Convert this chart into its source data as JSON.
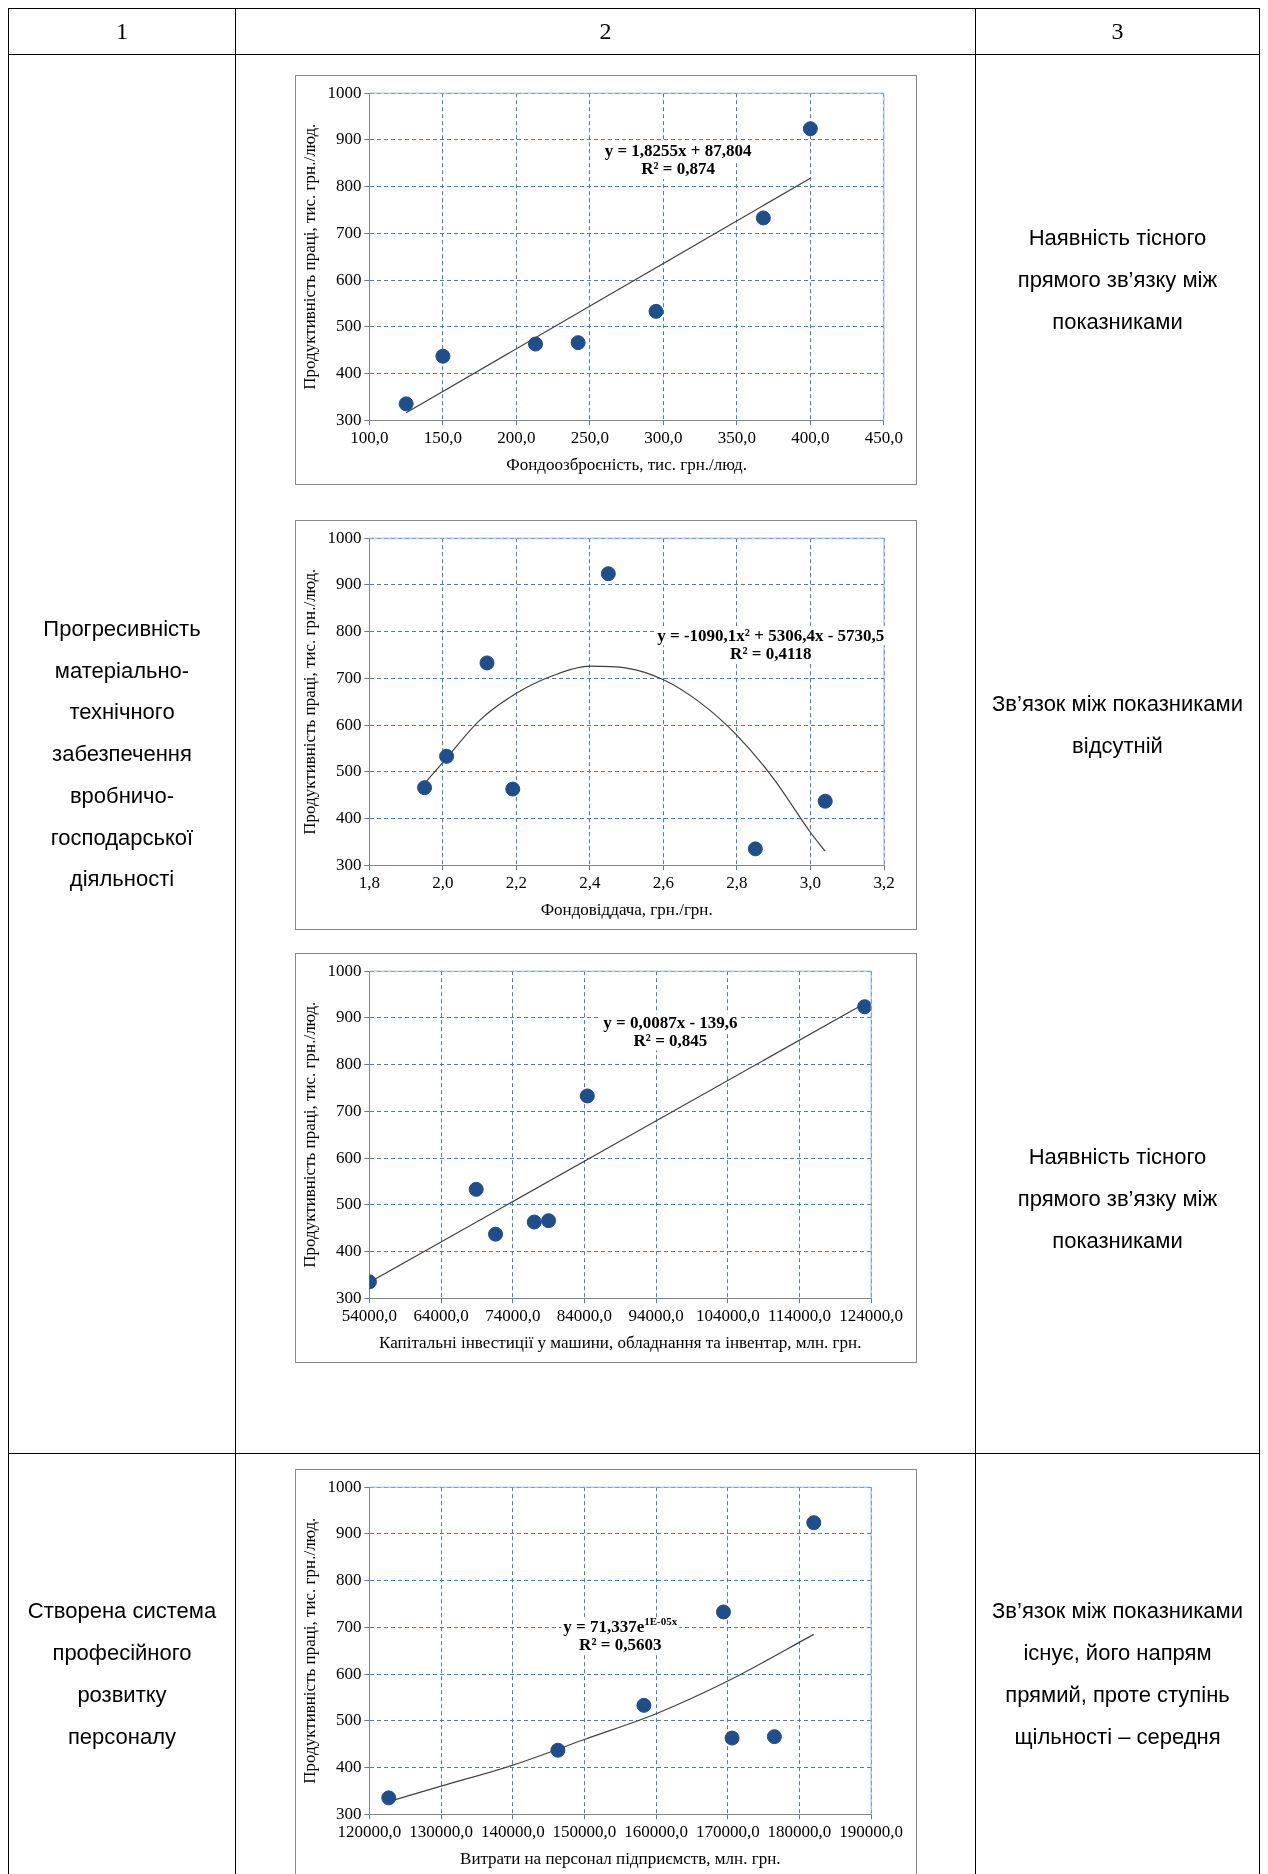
{
  "chart_data": [
    {
      "type": "other",
      "annotations": [
        "1",
        "2",
        "3"
      ]
    },
    {
      "type": "other",
      "annotations": [
        "Прогресивність матеріально-технічного забезпечення вробничо-господарської діяльності"
      ]
    },
    {
      "type": "scatter",
      "xlabel": "Фондоозброєність, тис. грн./люд.",
      "ylabel": "Продуктивність праці, тис. грн./люд.",
      "xlim": [
        100,
        450
      ],
      "ylim": [
        300,
        1000
      ],
      "xticks": [
        {
          "value": 100,
          "label": "100,0"
        },
        {
          "value": 150,
          "label": "150,0"
        },
        {
          "value": 200,
          "label": "200,0"
        },
        {
          "value": 250,
          "label": "250,0"
        },
        {
          "value": 300,
          "label": "300,0"
        },
        {
          "value": 350,
          "label": "350,0"
        },
        {
          "value": 400,
          "label": "400,0"
        },
        {
          "value": 450,
          "label": "450,0"
        }
      ],
      "yticks": [
        300,
        400,
        500,
        600,
        700,
        800,
        900,
        1000
      ],
      "grid": true,
      "series": [
        {
          "type": "scatter",
          "marker": "circle",
          "color": "#1f4e8c",
          "x": [
            125,
            150,
            213,
            242,
            295,
            368,
            400
          ],
          "values": [
            335,
            437,
            463,
            466,
            533,
            733,
            924
          ]
        },
        {
          "type": "line",
          "marker": "none",
          "color": "#404040",
          "x": [
            125,
            400
          ],
          "values": [
            316,
            818
          ]
        }
      ],
      "annotations": [
        "y = 1,8255x + 87,804",
        "R² = 0,874"
      ]
    },
    {
      "type": "other",
      "annotations": [
        "Наявність тісного прямого зв’язку між показниками"
      ]
    },
    {
      "type": "scatter",
      "xlabel": "Фондовіддача, грн./грн.",
      "ylabel": "Продуктивність праці, тис. грн./люд.",
      "xlim": [
        1.8,
        3.2
      ],
      "ylim": [
        300,
        1000
      ],
      "xticks": [
        {
          "value": 1.8,
          "label": "1,8"
        },
        {
          "value": 2,
          "label": "2,0"
        },
        {
          "value": 2.2,
          "label": "2,2"
        },
        {
          "value": 2.4,
          "label": "2,4"
        },
        {
          "value": 2.6,
          "label": "2,6"
        },
        {
          "value": 2.8,
          "label": "2,8"
        },
        {
          "value": 3,
          "label": "3,0"
        },
        {
          "value": 3.2,
          "label": "3,2"
        }
      ],
      "yticks": [
        300,
        400,
        500,
        600,
        700,
        800,
        900,
        1000
      ],
      "grid": true,
      "series": [
        {
          "type": "scatter",
          "marker": "circle",
          "color": "#1f4e8c",
          "x": [
            1.95,
            2.01,
            2.12,
            2.19,
            2.45,
            2.85,
            3.04
          ],
          "values": [
            466,
            533,
            733,
            463,
            924,
            335,
            437
          ]
        },
        {
          "type": "line",
          "marker": "none",
          "color": "#404040",
          "x": [
            1.95,
            2,
            2.1,
            2.2,
            2.3,
            2.4,
            2.5,
            2.6,
            2.7,
            2.8,
            2.9,
            3,
            3.04
          ],
          "values": [
            475,
            520,
            610,
            668,
            706,
            726,
            722,
            697,
            648,
            578,
            485,
            370,
            330
          ]
        }
      ],
      "annotations": [
        "y = -1090,1x² + 5306,4x - 5730,5",
        "R² = 0,4118"
      ]
    },
    {
      "type": "other",
      "annotations": [
        "Зв’язок між показниками відсутній"
      ]
    },
    {
      "type": "scatter",
      "xlabel": "Капітальні інвестиції у машини, обладнання та інвентар, млн. грн.",
      "ylabel": "Продуктивність праці, тис. грн./люд.",
      "xlim": [
        54000,
        124000
      ],
      "ylim": [
        300,
        1000
      ],
      "xticks": [
        {
          "value": 54000,
          "label": "54000,0"
        },
        {
          "value": 64000,
          "label": "64000,0"
        },
        {
          "value": 74000,
          "label": "74000,0"
        },
        {
          "value": 84000,
          "label": "84000,0"
        },
        {
          "value": 94000,
          "label": "94000,0"
        },
        {
          "value": 104000,
          "label": "104000,0"
        },
        {
          "value": 114000,
          "label": "114000,0"
        },
        {
          "value": 124000,
          "label": "124000,0"
        }
      ],
      "yticks": [
        300,
        400,
        500,
        600,
        700,
        800,
        900,
        1000
      ],
      "grid": true,
      "series": [
        {
          "type": "scatter",
          "marker": "circle",
          "color": "#1f4e8c",
          "x": [
            54000,
            68900,
            71600,
            77000,
            79000,
            84400,
            123100
          ],
          "values": [
            335,
            533,
            437,
            463,
            466,
            733,
            924
          ]
        },
        {
          "type": "line",
          "marker": "none",
          "color": "#404040",
          "x": [
            54000,
            123100
          ],
          "values": [
            334,
            931
          ]
        }
      ],
      "annotations": [
        "y = 0,0087x - 139,6",
        "R² = 0,845"
      ]
    },
    {
      "type": "other",
      "annotations": [
        "Наявність тісного прямого зв’язку між показниками"
      ]
    },
    {
      "type": "other",
      "annotations": [
        "Створена система професійного розвитку персоналу"
      ]
    },
    {
      "type": "scatter",
      "xlabel": "Витрати на персонал підприємств, млн. грн.",
      "ylabel": "Продуктивність праці, тис. грн./люд.",
      "xlim": [
        120000,
        190000
      ],
      "ylim": [
        300,
        1000
      ],
      "xticks": [
        {
          "value": 120000,
          "label": "120000,0"
        },
        {
          "value": 130000,
          "label": "130000,0"
        },
        {
          "value": 140000,
          "label": "140000,0"
        },
        {
          "value": 150000,
          "label": "150000,0"
        },
        {
          "value": 160000,
          "label": "160000,0"
        },
        {
          "value": 170000,
          "label": "170000,0"
        },
        {
          "value": 180000,
          "label": "180000,0"
        },
        {
          "value": 190000,
          "label": "190000,0"
        }
      ],
      "yticks": [
        300,
        400,
        500,
        600,
        700,
        800,
        900,
        1000
      ],
      "grid": true,
      "series": [
        {
          "type": "scatter",
          "marker": "circle",
          "color": "#1f4e8c",
          "x": [
            122700,
            146300,
            158300,
            169400,
            170600,
            176500,
            182000
          ],
          "values": [
            335,
            437,
            533,
            733,
            463,
            466,
            924
          ]
        },
        {
          "type": "line",
          "marker": "none",
          "color": "#404040",
          "x": [
            122700,
            130000,
            140000,
            150000,
            160000,
            170000,
            182000
          ],
          "values": [
            327,
            360,
            405,
            460,
            515,
            585,
            685
          ]
        }
      ],
      "annotations": [
        "y = 71,337e$^{1E-05x}$",
        "R² = 0,5603"
      ]
    },
    {
      "type": "other",
      "annotations": [
        "Зв’язок між показниками існує, його напрям прямий, проте ступінь щільності – середня"
      ]
    }
  ]
}
